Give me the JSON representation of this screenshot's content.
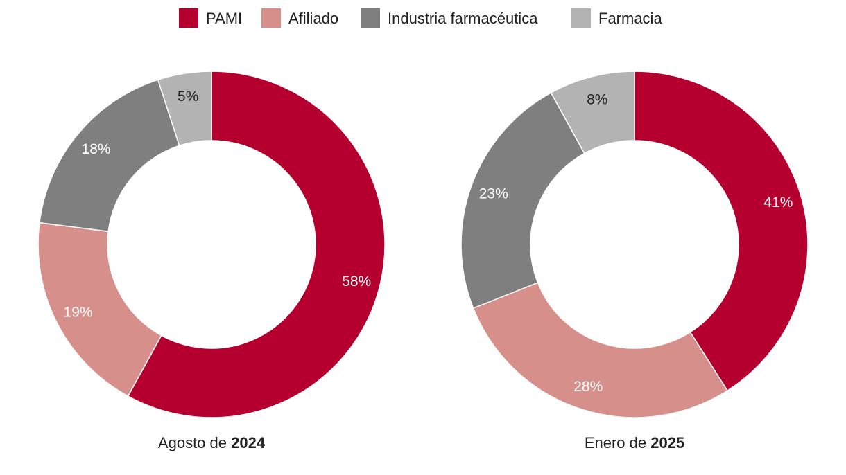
{
  "legend": [
    {
      "label": "PAMI",
      "color": "#b5002f"
    },
    {
      "label": "Afiliado",
      "color": "#d68f8a"
    },
    {
      "label": "Industria farmacéutica",
      "color": "#7f7f7f"
    },
    {
      "label": "Farmacia",
      "color": "#b3b3b3"
    }
  ],
  "chart_data": [
    {
      "type": "pie",
      "donut": true,
      "caption_prefix": "Agosto de ",
      "caption_year": "2024",
      "categories": [
        "PAMI",
        "Afiliado",
        "Industria farmacéutica",
        "Farmacia"
      ],
      "values": [
        58,
        19,
        18,
        5
      ],
      "labels": [
        "58%",
        "19%",
        "18%",
        "5%"
      ],
      "label_colors": [
        "#ffffff",
        "#ffffff",
        "#ffffff",
        "#222222"
      ]
    },
    {
      "type": "pie",
      "donut": true,
      "caption_prefix": "Enero de ",
      "caption_year": "2025",
      "categories": [
        "PAMI",
        "Afiliado",
        "Industria farmacéutica",
        "Farmacia"
      ],
      "values": [
        41,
        28,
        23,
        8
      ],
      "labels": [
        "41%",
        "28%",
        "23%",
        "8%"
      ],
      "label_colors": [
        "#ffffff",
        "#ffffff",
        "#ffffff",
        "#222222"
      ]
    }
  ]
}
